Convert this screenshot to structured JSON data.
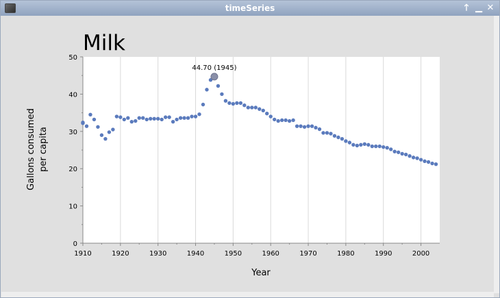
{
  "window": {
    "title": "timeSeries",
    "buttons": [
      {
        "name": "pin-up-button",
        "glyph": "🡑"
      },
      {
        "name": "minimize-button",
        "glyph": "▁"
      },
      {
        "name": "close-button",
        "glyph": "✕"
      }
    ]
  },
  "chart_data": {
    "type": "scatter",
    "title": "Milk",
    "xlabel": "Year",
    "ylabel": [
      "Gallons consumed",
      "per capita"
    ],
    "xlim": [
      1910,
      2005
    ],
    "ylim": [
      0,
      50
    ],
    "xticks": [
      1910,
      1920,
      1930,
      1940,
      1950,
      1960,
      1970,
      1980,
      1990,
      2000
    ],
    "yticks": [
      0,
      10,
      20,
      30,
      40,
      50
    ],
    "grid": "vertical",
    "point_color": "#5b7bbd",
    "highlight": {
      "x": 1945,
      "y": 44.7,
      "label": "44.70 (1945)"
    },
    "series": [
      {
        "x": [
          1909,
          1910,
          1911,
          1912,
          1913,
          1914,
          1915,
          1916,
          1917,
          1918,
          1919,
          1920,
          1921,
          1922,
          1923,
          1924,
          1925,
          1926,
          1927,
          1928,
          1929,
          1930,
          1931,
          1932,
          1933,
          1934,
          1935,
          1936,
          1937,
          1938,
          1939,
          1940,
          1941,
          1942,
          1943,
          1944,
          1945,
          1946,
          1947,
          1948,
          1949,
          1950,
          1951,
          1952,
          1953,
          1954,
          1955,
          1956,
          1957,
          1958,
          1959,
          1960,
          1961,
          1962,
          1963,
          1964,
          1965,
          1966,
          1967,
          1968,
          1969,
          1970,
          1971,
          1972,
          1973,
          1974,
          1975,
          1976,
          1977,
          1978,
          1979,
          1980,
          1981,
          1982,
          1983,
          1984,
          1985,
          1986,
          1987,
          1988,
          1989,
          1990,
          1991,
          1992,
          1993,
          1994,
          1995,
          1996,
          1997,
          1998,
          1999,
          2000,
          2001,
          2002,
          2003,
          2004
        ],
        "y": [
          32.2,
          32.4,
          31.4,
          34.5,
          33.2,
          31.2,
          29.0,
          28.0,
          29.8,
          30.5,
          34.0,
          33.8,
          33.2,
          33.6,
          32.6,
          32.8,
          33.6,
          33.6,
          33.2,
          33.4,
          33.4,
          33.4,
          33.2,
          33.8,
          33.8,
          32.6,
          33.2,
          33.6,
          33.6,
          33.6,
          34.0,
          34.0,
          34.6,
          37.2,
          41.2,
          43.8,
          44.7,
          42.2,
          40.0,
          38.2,
          37.6,
          37.4,
          37.6,
          37.6,
          37.0,
          36.4,
          36.4,
          36.4,
          36.0,
          35.6,
          34.8,
          34.0,
          33.2,
          32.8,
          33.0,
          33.0,
          32.8,
          33.0,
          31.4,
          31.4,
          31.2,
          31.4,
          31.4,
          31.0,
          30.6,
          29.6,
          29.6,
          29.4,
          28.8,
          28.4,
          28.0,
          27.4,
          27.0,
          26.4,
          26.2,
          26.4,
          26.6,
          26.4,
          26.0,
          26.0,
          26.0,
          25.8,
          25.6,
          25.2,
          24.6,
          24.4,
          24.0,
          23.8,
          23.4,
          23.0,
          22.8,
          22.4,
          22.0,
          21.8,
          21.4,
          21.2
        ]
      }
    ]
  }
}
